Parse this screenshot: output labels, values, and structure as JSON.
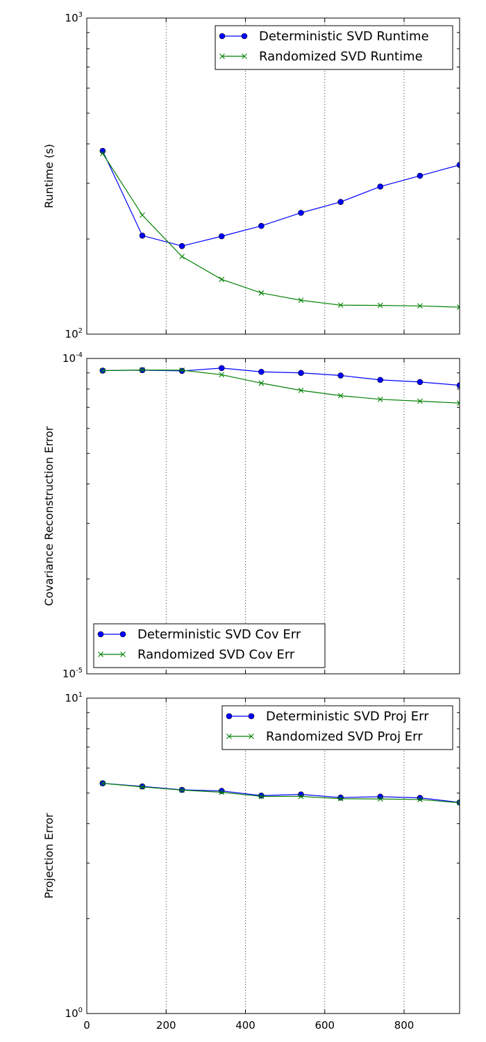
{
  "chart_data": [
    {
      "type": "line",
      "ylabel": "Runtime (s)",
      "yscale": "log",
      "ylim": [
        100,
        1000
      ],
      "y_ticks": [
        {
          "base": "10",
          "exp": "2"
        },
        {
          "base": "10",
          "exp": "3"
        }
      ],
      "xlim": [
        0,
        940
      ],
      "x": [
        40,
        140,
        240,
        340,
        440,
        540,
        640,
        740,
        840,
        940
      ],
      "grid": "vertical-dotted",
      "legend_position": "top-right",
      "series": [
        {
          "name": "Deterministic SVD Runtime",
          "color": "#0000ff",
          "marker": "circle",
          "values": [
            380,
            205,
            190,
            204,
            220,
            242,
            262,
            293,
            317,
            343
          ]
        },
        {
          "name": "Randomized SVD Runtime",
          "color": "#008000",
          "marker": "x",
          "values": [
            373,
            238,
            176,
            149,
            135,
            128,
            123.5,
            123.3,
            122.8,
            121.7
          ]
        }
      ]
    },
    {
      "type": "line",
      "ylabel": "Covariance Reconstruction Error",
      "yscale": "log",
      "ylim": [
        1e-05,
        0.0001
      ],
      "y_ticks": [
        {
          "base": "10",
          "exp": "-5"
        },
        {
          "base": "10",
          "exp": "-4"
        }
      ],
      "xlim": [
        0,
        940
      ],
      "x": [
        40,
        140,
        240,
        340,
        440,
        540,
        640,
        740,
        840,
        940
      ],
      "grid": "vertical-dotted",
      "legend_position": "bottom-left",
      "series": [
        {
          "name": "Deterministic SVD Cov Err",
          "color": "#0000ff",
          "marker": "circle",
          "values": [
            9.15e-05,
            9.18e-05,
            9.13e-05,
            9.32e-05,
            9.07e-05,
            9e-05,
            8.83e-05,
            8.55e-05,
            8.42e-05,
            8.22e-05
          ]
        },
        {
          "name": "Randomized SVD Cov Err",
          "color": "#008000",
          "marker": "x",
          "values": [
            9.15e-05,
            9.19e-05,
            9.18e-05,
            8.88e-05,
            8.35e-05,
            7.92e-05,
            7.62e-05,
            7.42e-05,
            7.32e-05,
            7.22e-05
          ]
        }
      ]
    },
    {
      "type": "line",
      "ylabel": "Projection Error",
      "yscale": "log",
      "ylim": [
        1,
        10
      ],
      "y_ticks": [
        {
          "base": "10",
          "exp": "0"
        },
        {
          "base": "10",
          "exp": "1"
        }
      ],
      "xlim": [
        0,
        940
      ],
      "x": [
        40,
        140,
        240,
        340,
        440,
        540,
        640,
        740,
        840,
        940
      ],
      "x_ticks": [
        0,
        200,
        400,
        600,
        800
      ],
      "grid": "vertical-dotted",
      "legend_position": "top-right",
      "series": [
        {
          "name": "Deterministic SVD Proj Err",
          "color": "#0000ff",
          "marker": "circle",
          "values": [
            5.37,
            5.25,
            5.12,
            5.08,
            4.91,
            4.95,
            4.84,
            4.87,
            4.83,
            4.67
          ]
        },
        {
          "name": "Randomized SVD Proj Err",
          "color": "#008000",
          "marker": "x",
          "values": [
            5.37,
            5.23,
            5.11,
            5.03,
            4.88,
            4.88,
            4.8,
            4.79,
            4.77,
            4.66
          ]
        }
      ]
    }
  ]
}
